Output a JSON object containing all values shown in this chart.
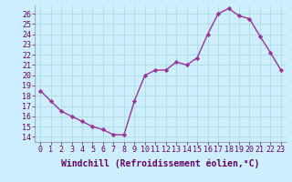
{
  "x": [
    0,
    1,
    2,
    3,
    4,
    5,
    6,
    7,
    8,
    9,
    10,
    11,
    12,
    13,
    14,
    15,
    16,
    17,
    18,
    19,
    20,
    21,
    22,
    23
  ],
  "y": [
    18.5,
    17.5,
    16.5,
    16.0,
    15.5,
    15.0,
    14.7,
    14.2,
    14.2,
    17.5,
    20.0,
    20.5,
    20.5,
    21.3,
    21.0,
    21.7,
    24.0,
    26.0,
    26.5,
    25.8,
    25.5,
    23.8,
    22.2,
    20.5
  ],
  "line_color": "#993399",
  "marker": "D",
  "marker_size": 2.2,
  "bg_color": "#cceeff",
  "grid_color": "#aadddd",
  "xlabel": "Windchill (Refroidissement éolien,°C)",
  "xlabel_fontsize": 7,
  "xlim": [
    -0.5,
    23.5
  ],
  "ylim": [
    13.5,
    26.8
  ],
  "yticks": [
    14,
    15,
    16,
    17,
    18,
    19,
    20,
    21,
    22,
    23,
    24,
    25,
    26
  ],
  "xticks": [
    0,
    1,
    2,
    3,
    4,
    5,
    6,
    7,
    8,
    9,
    10,
    11,
    12,
    13,
    14,
    15,
    16,
    17,
    18,
    19,
    20,
    21,
    22,
    23
  ],
  "tick_fontsize": 6,
  "linewidth": 1.0
}
